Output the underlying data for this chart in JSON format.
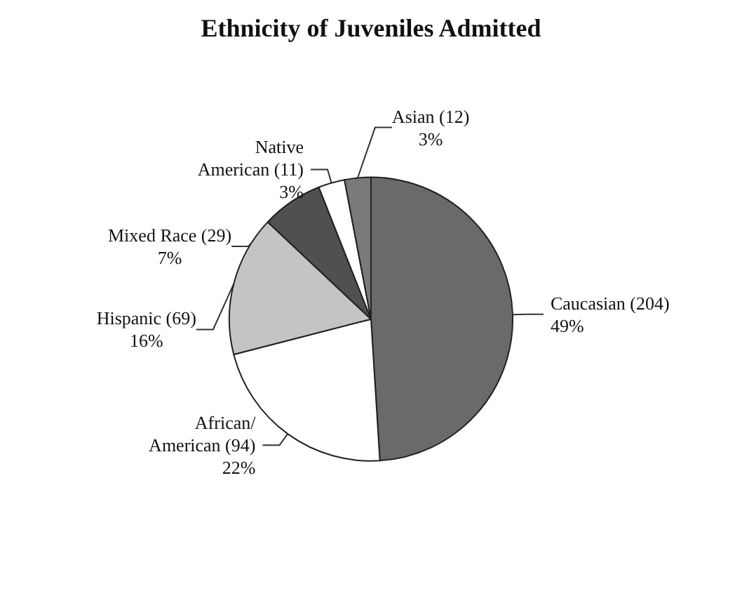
{
  "chart_data": {
    "type": "pie",
    "title": "Ethnicity of Juveniles Admitted",
    "categories": [
      "Caucasian (204)",
      "African/\nAmerican (94)",
      "Hispanic (69)",
      "Mixed Race (29)",
      "Native\nAmerican (11)",
      "Asian (12)"
    ],
    "values": [
      49,
      22,
      16,
      7,
      3,
      3
    ],
    "value_labels": [
      "49%",
      "22%",
      "16%",
      "7%",
      "3%",
      "3%"
    ],
    "colors": [
      "#6a6a6a",
      "#ffffff",
      "#c4c4c4",
      "#505050",
      "#ffffff",
      "#7a7a7a"
    ],
    "legend": false
  }
}
